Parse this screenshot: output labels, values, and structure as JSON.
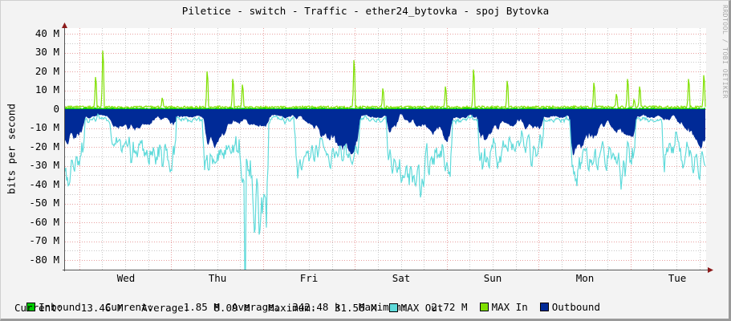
{
  "title": "Piletice - switch - Traffic - ether24_bytovka - spoj Bytovka",
  "watermark": "RRDTOOL / TOBI OETIKER",
  "chart_data": {
    "type": "area",
    "title": "Piletice - switch - Traffic - ether24_bytovka - spoj Bytovka",
    "xlabel": "",
    "ylabel": "bits per second",
    "ylim": [
      -85000000,
      45000000
    ],
    "y_ticks": [
      "40 M",
      "30 M",
      "20 M",
      "10 M",
      "0",
      "-10 M",
      "-20 M",
      "-30 M",
      "-40 M",
      "-50 M",
      "-60 M",
      "-70 M",
      "-80 M"
    ],
    "x_ticks": [
      "Wed",
      "Thu",
      "Fri",
      "Sat",
      "Sun",
      "Mon",
      "Tue"
    ],
    "grid": true,
    "legend_position": "bottom",
    "series": [
      {
        "name": "Inbound",
        "color": "#00cc00",
        "style": "area",
        "current": "1.85 M",
        "average": "342.48 k",
        "maximum": "2.72 M",
        "approx_values_M": [
          0.5,
          0.4,
          0.5,
          0.8,
          1.5,
          0.6,
          0.4,
          0.5,
          1.0,
          0.5,
          0.3,
          0.5,
          0.6,
          1.2,
          0.5,
          0.4,
          0.5,
          0.8,
          1.8,
          0.5
        ]
      },
      {
        "name": "MAX In",
        "color": "#7fe000",
        "style": "line",
        "peaks_M": [
          {
            "day": "Tue-Wed",
            "value": 17
          },
          {
            "day": "Wed",
            "value": 31
          },
          {
            "day": "Wed",
            "value": 6
          },
          {
            "day": "Thu",
            "value": 20
          },
          {
            "day": "Thu",
            "value": 16
          },
          {
            "day": "Thu",
            "value": 13
          },
          {
            "day": "Fri",
            "value": 26
          },
          {
            "day": "Fri",
            "value": 11
          },
          {
            "day": "Sat",
            "value": 12
          },
          {
            "day": "Sat",
            "value": 21
          },
          {
            "day": "Sat",
            "value": 15
          },
          {
            "day": "Sun",
            "value": 14
          },
          {
            "day": "Sun",
            "value": 8
          },
          {
            "day": "Sun",
            "value": 16
          },
          {
            "day": "Mon",
            "value": 5
          },
          {
            "day": "Mon",
            "value": 12
          },
          {
            "day": "Mon",
            "value": 16
          },
          {
            "day": "Mon",
            "value": 18
          },
          {
            "day": "Tue",
            "value": 7
          },
          {
            "day": "Tue",
            "value": 18
          }
        ]
      },
      {
        "name": "Outbound",
        "color": "#002a97",
        "style": "area",
        "current": "13.46 M",
        "average": "8.09 M",
        "maximum": "31.56 M",
        "approx_values_M": [
          -20,
          -8,
          -12,
          -5,
          -30,
          -8,
          -10,
          -5,
          -20,
          -28,
          -5,
          -15,
          -25,
          -8,
          -12,
          -30,
          -10,
          -18,
          -5,
          -22
        ]
      },
      {
        "name": "MAX Out",
        "color": "#5fdada",
        "style": "line",
        "min_M": -85,
        "approx_values_M": [
          -50,
          -20,
          -30,
          -40,
          -45,
          -30,
          -85,
          -40,
          -30,
          -40,
          -55,
          -45,
          -40,
          -35,
          -30,
          -45,
          -40,
          -45,
          -30,
          -40
        ]
      }
    ]
  },
  "legend": {
    "inbound": {
      "label": "Inbound",
      "current_label": "Current:",
      "current": "1.85 M",
      "average_label": "Average:",
      "average": "342.48 k",
      "maximum_label": "Maximum:",
      "maximum": "2.72 M"
    },
    "max_in": {
      "label": "MAX In"
    },
    "outbound": {
      "label": "Outbound",
      "current_label": "Current:",
      "current": "13.46 M",
      "average_label": "Average:",
      "average": "8.09 M",
      "maximum_label": "Maximum:",
      "maximum": "31.56 M"
    },
    "max_out": {
      "label": "MAX Out"
    }
  },
  "colors": {
    "inbound": "#00cc00",
    "max_in": "#7fe000",
    "outbound": "#002a97",
    "max_out": "#5fdada",
    "grid_major": "#e8a0a0",
    "grid_minor": "#c8c8c8",
    "axis_arrow": "#8b1a1a"
  }
}
